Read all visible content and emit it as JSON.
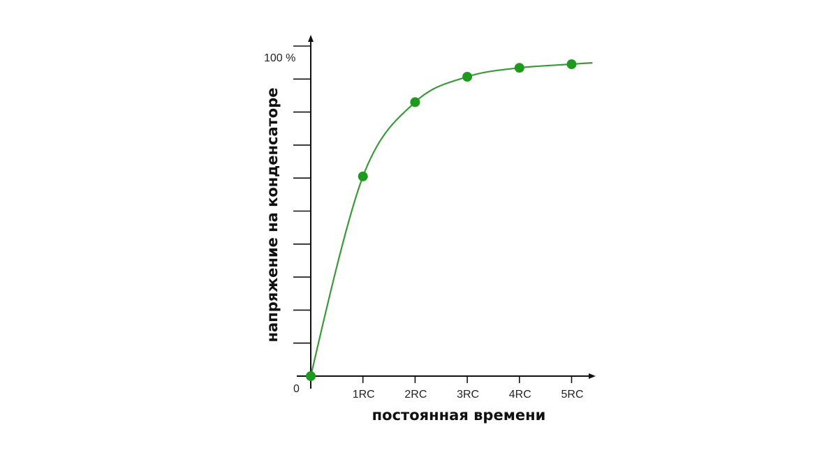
{
  "chart_data": {
    "type": "line",
    "title": "",
    "xlabel": "постоянная времени",
    "ylabel": "напряжение на конденсаторе",
    "x_tick_labels": [
      "1RC",
      "2RC",
      "3RC",
      "4RC",
      "5RC"
    ],
    "y_tick_labels": {
      "zero": "0",
      "top": "100 %"
    },
    "x": [
      0,
      1,
      2,
      3,
      4,
      5
    ],
    "values": [
      0,
      60.5,
      83,
      90.7,
      93.4,
      94.5
    ],
    "xlim": [
      0,
      5.4
    ],
    "ylim": [
      0,
      100
    ],
    "y_tick_step": 10,
    "grid": false,
    "legend": "none",
    "colors": {
      "line": "#3a9a3a",
      "marker": "#1e9a1e",
      "axis": "#111111"
    }
  }
}
